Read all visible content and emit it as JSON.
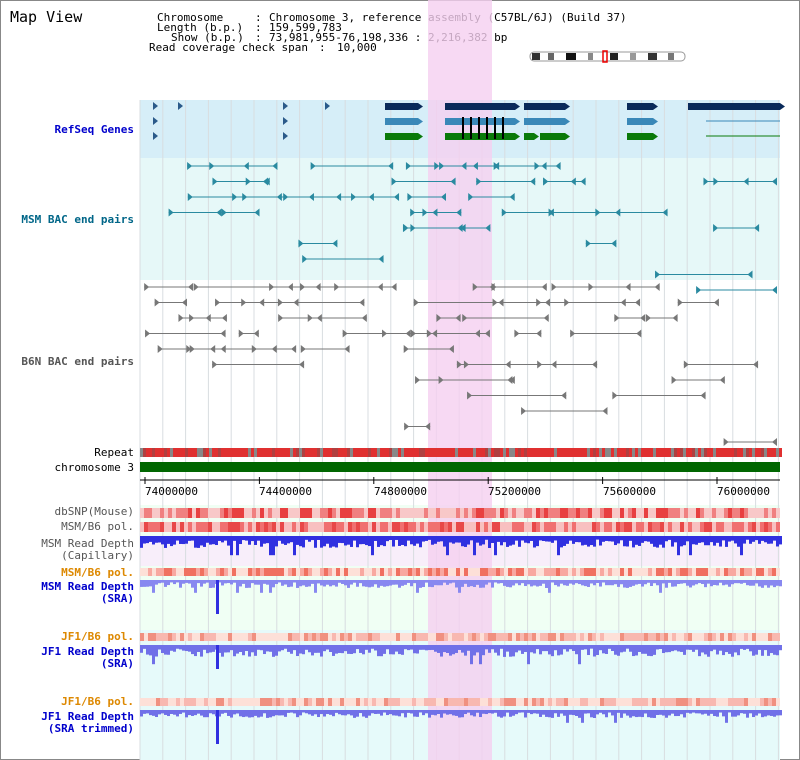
{
  "header": {
    "title": "Map View",
    "chromosome_key": "Chromosome",
    "chromosome_val": "Chromosome 3, reference assembly (C57BL/6J) (Build 37)",
    "length_key": "Length (b.p.)",
    "length_val": "159,599,783",
    "show_key": "Show (b.p.)",
    "show_val": "73,981,955-76,198,336 : 2,216,382 bp",
    "coverage_key": "Read coverage check span",
    "coverage_val": "10,000"
  },
  "tracks": {
    "refseq": "RefSeq Genes",
    "msm_bac": "MSM BAC end pairs",
    "b6n_bac": "B6N BAC end pairs",
    "repeat": "Repeat",
    "chromosome": "chromosome 3",
    "dbsnp": "dbSNP(Mouse)",
    "msm_b6_pol_1": "MSM/B6 pol.",
    "msm_depth_cap": "MSM Read Depth\n(Capillary)",
    "msm_b6_pol_2": "MSM/B6 pol.",
    "msm_depth_sra": "MSM Read Depth\n(SRA)",
    "jf1_pol_1": "JF1/B6 pol.",
    "jf1_depth_sra": "JF1 Read Depth\n(SRA)",
    "jf1_pol_2": "JF1/B6 pol.",
    "jf1_depth_trim": "JF1 Read Depth\n(SRA trimmed)"
  },
  "axis": {
    "ticks": [
      "74000000",
      "74400000",
      "74800000",
      "75200000",
      "75600000",
      "76000000"
    ]
  },
  "colors": {
    "label_blue": "#0000cc",
    "label_teal": "#006688",
    "label_gray": "#555555",
    "label_orange": "#dd8800",
    "highlight": "#f5d0f0"
  }
}
